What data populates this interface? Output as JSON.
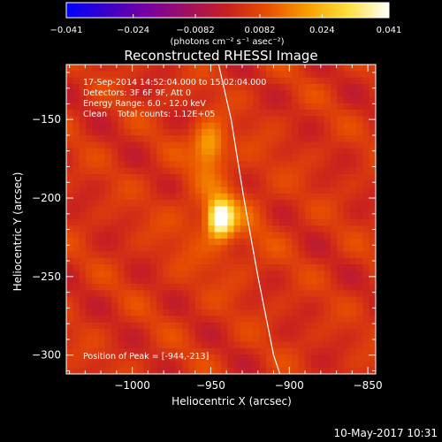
{
  "chart_data": {
    "type": "heatmap",
    "title": "Reconstructed RHESSI Image",
    "xlabel": "Heliocentric X (arcsec)",
    "ylabel": "Heliocentric Y (arcsec)",
    "xlim": [
      -1042,
      -845
    ],
    "ylim": [
      -312,
      -115
    ],
    "x_ticks": [
      -1000,
      -950,
      -900,
      -850
    ],
    "x_tick_labels": [
      "−1000",
      "−950",
      "−900",
      "−850"
    ],
    "y_ticks": [
      -150,
      -200,
      -250,
      -300
    ],
    "y_tick_labels": [
      "−150",
      "−200",
      "−250",
      "−300"
    ],
    "colorbar": {
      "ticks": [
        -0.041,
        -0.024,
        -0.0082,
        0.0082,
        0.024,
        0.041
      ],
      "tick_labels": [
        "−0.041",
        "−0.024",
        "−0.0082",
        "0.0082",
        "0.024",
        "0.041"
      ],
      "units_label": "(photons cm⁻² s⁻¹ asec⁻²)",
      "colormap": [
        "#0000ff",
        "#3a00c8",
        "#7800a0",
        "#a01060",
        "#c82020",
        "#e85000",
        "#f8a000",
        "#ffe040",
        "#ffffff"
      ]
    },
    "annotations": [
      "17-Sep-2014 14:52:04.000 to 15:02:04.000",
      "Detectors: 3F 6F 9F, Att 0",
      "Energy Range: 6.0 - 12.0 keV",
      "Clean    Total counts: 1.12E+05"
    ],
    "peak_label": "Position of Peak = [-944,-213]",
    "peak": {
      "x": -944,
      "y": -213,
      "value": 0.041
    },
    "secondary_source": {
      "x": -951,
      "y": -167,
      "value": 0.02
    },
    "background_level": 0.004,
    "limb_curve": [
      [
        -945,
        -115
      ],
      [
        -937,
        -150
      ],
      [
        -929,
        -200
      ],
      [
        -920,
        -250
      ],
      [
        -910,
        -300
      ],
      [
        -906,
        -312
      ]
    ],
    "grid": false,
    "legend": "none"
  },
  "footer": {
    "date": "10-May-2017 10:31"
  }
}
